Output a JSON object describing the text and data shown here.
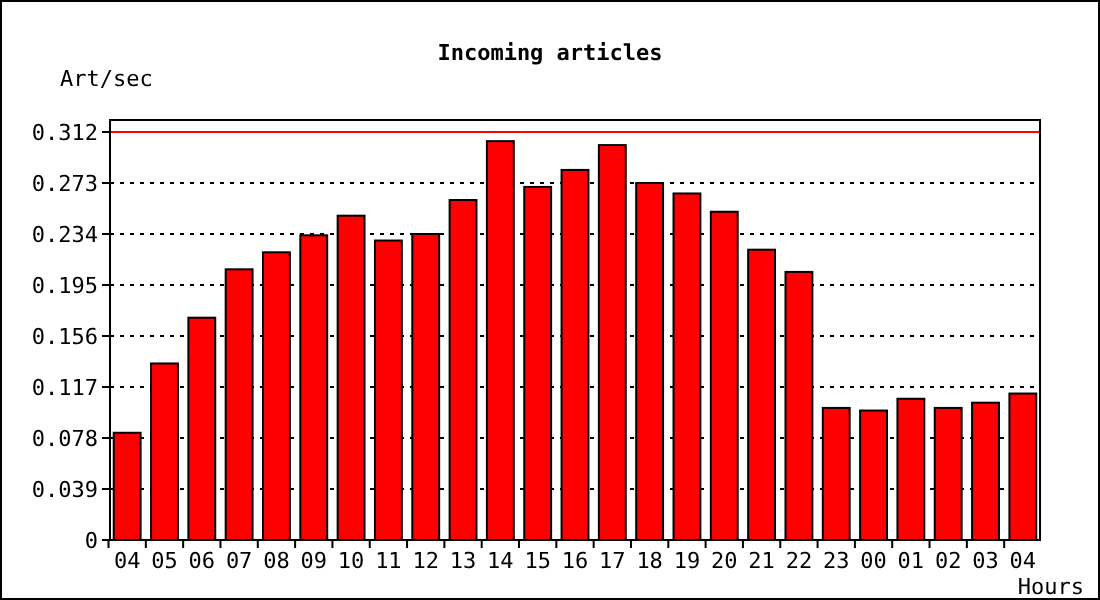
{
  "chart_data": {
    "type": "bar",
    "title": "Incoming articles",
    "ylabel": "Art/sec",
    "xlabel": "Hours",
    "categories": [
      "04",
      "05",
      "06",
      "07",
      "08",
      "09",
      "10",
      "11",
      "12",
      "13",
      "14",
      "15",
      "16",
      "17",
      "18",
      "19",
      "20",
      "21",
      "22",
      "23",
      "00",
      "01",
      "02",
      "03",
      "04"
    ],
    "values": [
      0.082,
      0.135,
      0.17,
      0.207,
      0.22,
      0.233,
      0.248,
      0.229,
      0.234,
      0.26,
      0.305,
      0.27,
      0.283,
      0.302,
      0.273,
      0.265,
      0.251,
      0.222,
      0.205,
      0.101,
      0.099,
      0.108,
      0.101,
      0.105,
      0.112
    ],
    "color": "#ff0000",
    "ylim": [
      0,
      0.312
    ],
    "yticks": [
      0,
      0.039,
      0.078,
      0.117,
      0.156,
      0.195,
      0.234,
      0.273,
      0.312
    ],
    "grid": "y",
    "ref_lines": [
      {
        "axis": "y",
        "value": 0.312,
        "color": "#ff0000"
      }
    ]
  }
}
